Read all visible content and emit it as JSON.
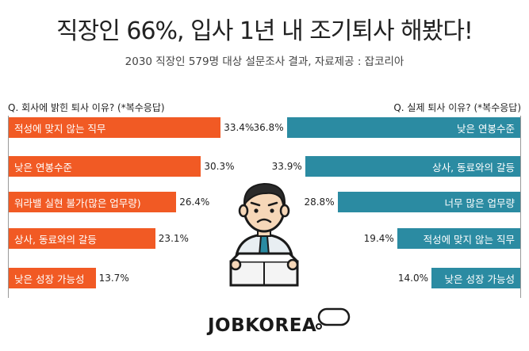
{
  "title": "직장인 66%, 입사 1년 내 조기퇴사 해봤다!",
  "subtitle": "2030 직장인 579명 대상 설문조사 결과, 자료제공 : 잡코리아",
  "brand": "JOBKOREA",
  "colors": {
    "left_bar": "#f15a24",
    "right_bar": "#2b8ba2"
  },
  "chart_data": [
    {
      "type": "bar",
      "orientation": "horizontal",
      "title": "Q. 회사에 밝힌 퇴사 이유? (*복수응답)",
      "categories": [
        "적성에 맞지 않는 직무",
        "낮은 연봉수준",
        "워라밸 실현 불가(많은 업무량)",
        "상사, 동료와의 갈등",
        "낮은 성장 가능성"
      ],
      "values": [
        33.4,
        30.3,
        26.4,
        23.1,
        13.7
      ],
      "labels": [
        "33.4%",
        "30.3%",
        "26.4%",
        "23.1%",
        "13.7%"
      ],
      "unit": "%"
    },
    {
      "type": "bar",
      "orientation": "horizontal",
      "title": "Q. 실제 퇴사 이유? (*복수응답)",
      "categories": [
        "낮은 연봉수준",
        "상사, 동료와의 갈등",
        "너무 많은 업무량",
        "적성에 맞지 않는 직무",
        "낮은 성장 가능성"
      ],
      "values": [
        36.8,
        33.9,
        28.8,
        19.4,
        14.0
      ],
      "labels": [
        "36.8%",
        "33.9%",
        "28.8%",
        "19.4%",
        "14.0%"
      ],
      "unit": "%"
    }
  ]
}
